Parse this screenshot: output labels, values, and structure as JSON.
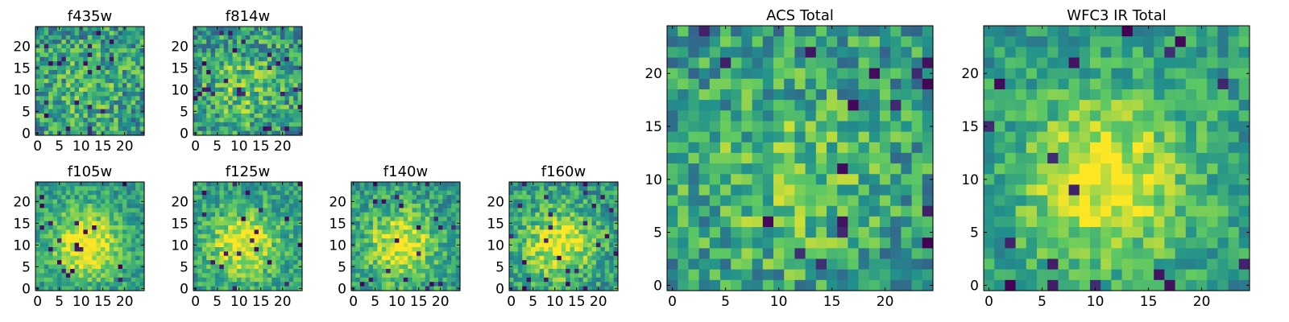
{
  "panels": [
    {
      "id": "f435w",
      "title": "f435w",
      "grid": 25,
      "ticks": [
        "0",
        "5",
        "10",
        "15",
        "20"
      ],
      "yticks": [
        "0",
        "5",
        "10",
        "15",
        "20"
      ],
      "seed": 11,
      "peak": 0.15,
      "noise": 0.55
    },
    {
      "id": "f814w",
      "title": "f814w",
      "grid": 25,
      "ticks": [
        "0",
        "5",
        "10",
        "15",
        "20"
      ],
      "yticks": [
        "0",
        "5",
        "10",
        "15",
        "20"
      ],
      "seed": 23,
      "peak": 0.25,
      "noise": 0.55
    },
    {
      "id": "f105w",
      "title": "f105w",
      "grid": 25,
      "ticks": [
        "0",
        "5",
        "10",
        "15",
        "20"
      ],
      "yticks": [
        "0",
        "5",
        "10",
        "15",
        "20"
      ],
      "seed": 37,
      "peak": 0.6,
      "noise": 0.35
    },
    {
      "id": "f125w",
      "title": "f125w",
      "grid": 25,
      "ticks": [
        "0",
        "5",
        "10",
        "15",
        "20"
      ],
      "yticks": [
        "0",
        "5",
        "10",
        "15",
        "20"
      ],
      "seed": 41,
      "peak": 0.55,
      "noise": 0.38
    },
    {
      "id": "f140w",
      "title": "f140w",
      "grid": 25,
      "ticks": [
        "0",
        "5",
        "10",
        "15",
        "20"
      ],
      "yticks": [
        "0",
        "5",
        "10",
        "15",
        "20"
      ],
      "seed": 53,
      "peak": 0.55,
      "noise": 0.42
    },
    {
      "id": "f160w",
      "title": "f160w",
      "grid": 25,
      "ticks": [
        "0",
        "5",
        "10",
        "15",
        "20"
      ],
      "yticks": [
        "0",
        "5",
        "10",
        "15",
        "20"
      ],
      "seed": 67,
      "peak": 0.55,
      "noise": 0.42
    },
    {
      "id": "acs-total",
      "title": "ACS Total",
      "grid": 25,
      "ticks": [
        "0",
        "5",
        "10",
        "15",
        "20"
      ],
      "yticks": [
        "0",
        "5",
        "10",
        "15",
        "20"
      ],
      "seed": 79,
      "peak": 0.25,
      "noise": 0.5
    },
    {
      "id": "wfc3-ir-total",
      "title": "WFC3 IR Total",
      "grid": 25,
      "ticks": [
        "0",
        "5",
        "10",
        "15",
        "20"
      ],
      "yticks": [
        "0",
        "5",
        "10",
        "15",
        "20"
      ],
      "seed": 97,
      "peak": 0.55,
      "noise": 0.35
    }
  ],
  "colormap": [
    "#440154",
    "#3b528b",
    "#21918c",
    "#5ec962",
    "#fde725"
  ]
}
